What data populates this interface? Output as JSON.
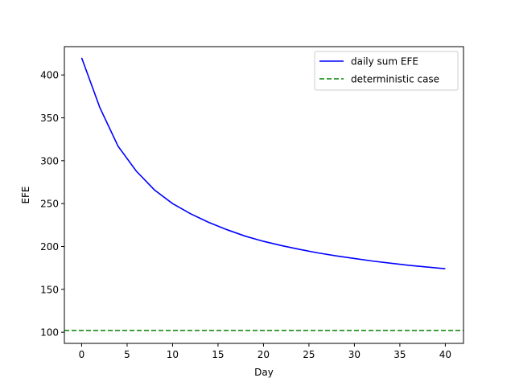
{
  "chart_data": {
    "type": "line",
    "title": "",
    "xlabel": "Day",
    "ylabel": "EFE",
    "xlim": [
      -1.9,
      42
    ],
    "ylim": [
      87,
      433
    ],
    "xticks": [
      0,
      5,
      10,
      15,
      20,
      25,
      30,
      35,
      40
    ],
    "yticks": [
      100,
      150,
      200,
      250,
      300,
      350,
      400
    ],
    "grid": false,
    "legend_position": "top-right",
    "series": [
      {
        "name": "daily sum EFE",
        "style": "solid",
        "color": "#0000ff",
        "x": [
          0,
          2,
          4,
          6,
          8,
          10,
          12,
          14,
          16,
          18,
          20,
          22,
          24,
          26,
          28,
          30,
          32,
          34,
          36,
          38,
          40
        ],
        "y": [
          420,
          362,
          317,
          288,
          266,
          250,
          238,
          228,
          219.5,
          212,
          206,
          201,
          196.5,
          192.5,
          189,
          186,
          183,
          180.5,
          178,
          176,
          174
        ]
      },
      {
        "name": "deterministic case",
        "style": "dashed",
        "color": "#008000",
        "constant": 102
      }
    ]
  }
}
